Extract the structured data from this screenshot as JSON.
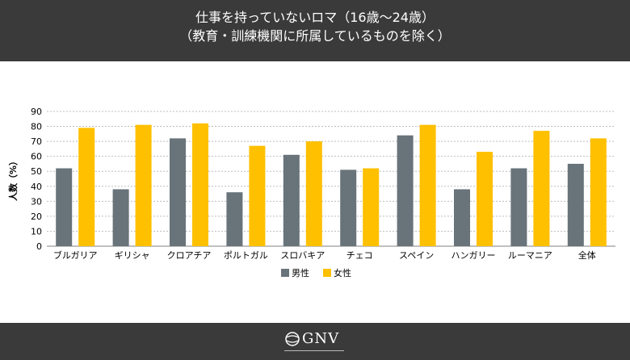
{
  "header": {
    "title_line1": "仕事を持っていないロマ（16歳〜24歳）",
    "title_line2": "（教育・訓練機関に所属しているものを除く）"
  },
  "chart_data": {
    "type": "bar",
    "title": "仕事を持っていないロマ（16歳〜24歳）（教育・訓練機関に所属しているものを除く）",
    "ylabel": "人数（%）",
    "xlabel": "",
    "ylim": [
      0,
      90
    ],
    "yticks": [
      0,
      10,
      20,
      30,
      40,
      50,
      60,
      70,
      80,
      90
    ],
    "grid": true,
    "legend_position": "bottom-center",
    "categories": [
      "ブルガリア",
      "ギリシャ",
      "クロアチア",
      "ポルトガル",
      "スロバキア",
      "チェコ",
      "スペイン",
      "ハンガリー",
      "ルーマニア",
      "全体"
    ],
    "series": [
      {
        "name": "男性",
        "color": "#68737a",
        "values": [
          52,
          38,
          72,
          36,
          61,
          51,
          74,
          38,
          52,
          55
        ]
      },
      {
        "name": "女性",
        "color": "#ffc000",
        "values": [
          79,
          81,
          82,
          67,
          70,
          52,
          81,
          63,
          77,
          72
        ]
      }
    ]
  },
  "footer": {
    "logo_text": "GNV"
  }
}
